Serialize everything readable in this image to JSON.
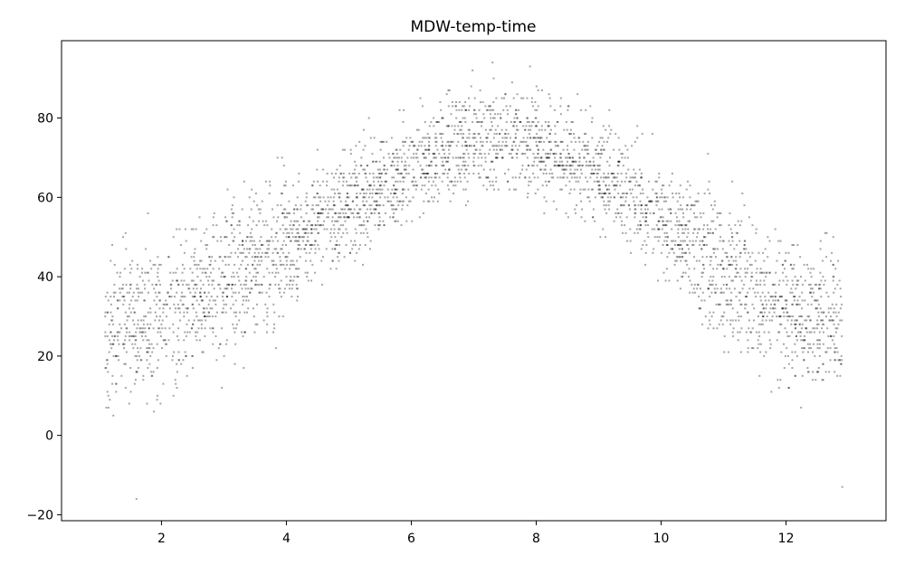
{
  "chart_data": {
    "type": "scatter",
    "title": "MDW-temp-time",
    "xlabel": "",
    "ylabel": "",
    "xlim": [
      0.4,
      13.6
    ],
    "ylim": [
      -21.5,
      99.5
    ],
    "x_ticks": [
      2,
      4,
      6,
      8,
      10,
      12
    ],
    "y_ticks": [
      -20,
      0,
      20,
      40,
      60,
      80
    ],
    "grid": false,
    "legend": "none",
    "marker_color": "#000000",
    "marker_alpha": 0.35,
    "series_summary": {
      "description_points": "daily temperature observations vs. fractional month; values on integer degrees",
      "sample_points": [
        {
          "x": 1.1,
          "y": 30
        },
        {
          "x": 1.3,
          "y": 25
        },
        {
          "x": 1.5,
          "y": 38
        },
        {
          "x": 1.6,
          "y": -16
        },
        {
          "x": 2.0,
          "y": 28
        },
        {
          "x": 2.5,
          "y": 35
        },
        {
          "x": 3.0,
          "y": 40
        },
        {
          "x": 3.5,
          "y": 45
        },
        {
          "x": 4.0,
          "y": 50
        },
        {
          "x": 4.5,
          "y": 55
        },
        {
          "x": 5.0,
          "y": 60
        },
        {
          "x": 5.5,
          "y": 65
        },
        {
          "x": 6.0,
          "y": 70
        },
        {
          "x": 6.5,
          "y": 73
        },
        {
          "x": 7.0,
          "y": 76
        },
        {
          "x": 7.3,
          "y": 94
        },
        {
          "x": 7.5,
          "y": 76
        },
        {
          "x": 7.9,
          "y": 93
        },
        {
          "x": 8.0,
          "y": 74
        },
        {
          "x": 8.5,
          "y": 72
        },
        {
          "x": 9.0,
          "y": 68
        },
        {
          "x": 9.5,
          "y": 62
        },
        {
          "x": 10.0,
          "y": 55
        },
        {
          "x": 10.5,
          "y": 48
        },
        {
          "x": 11.0,
          "y": 42
        },
        {
          "x": 11.5,
          "y": 36
        },
        {
          "x": 12.0,
          "y": 32
        },
        {
          "x": 12.5,
          "y": 28
        },
        {
          "x": 12.9,
          "y": -13
        }
      ],
      "mean_curve": [
        {
          "x": 1.0,
          "y": 26
        },
        {
          "x": 2.0,
          "y": 30
        },
        {
          "x": 3.0,
          "y": 38
        },
        {
          "x": 4.0,
          "y": 48
        },
        {
          "x": 5.0,
          "y": 58
        },
        {
          "x": 6.0,
          "y": 68
        },
        {
          "x": 7.0,
          "y": 74
        },
        {
          "x": 7.5,
          "y": 75
        },
        {
          "x": 8.0,
          "y": 74
        },
        {
          "x": 9.0,
          "y": 66
        },
        {
          "x": 10.0,
          "y": 55
        },
        {
          "x": 11.0,
          "y": 42
        },
        {
          "x": 12.0,
          "y": 32
        },
        {
          "x": 12.9,
          "y": 28
        }
      ]
    }
  }
}
